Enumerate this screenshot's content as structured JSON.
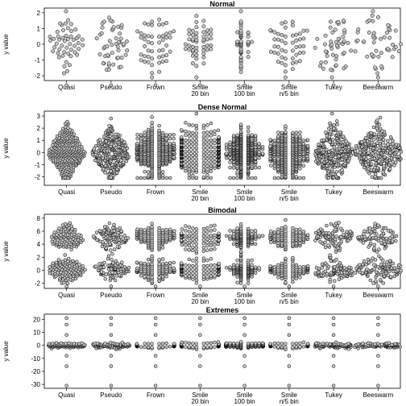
{
  "chart_data": [
    {
      "type": "scatter",
      "title": "Normal",
      "ylabel": "y value",
      "ylim": [
        -2.3,
        2.3
      ],
      "yticks": [
        -2,
        -1,
        0,
        1,
        2
      ],
      "categories": [
        "Quasi",
        "Pseudo",
        "Frown",
        "Smile\n20 bin",
        "Smile\n100 bin",
        "Smile\nn/5 bin",
        "Tukey",
        "Beeswarm"
      ],
      "n_points_per_method": 50,
      "distribution": "normal(0,1)",
      "outliers": [
        -2.6
      ]
    },
    {
      "type": "scatter",
      "title": "Dense Normal",
      "ylabel": "y value",
      "ylim": [
        -2.7,
        3.4
      ],
      "yticks": [
        -2,
        -1,
        0,
        1,
        2,
        3
      ],
      "categories": [
        "Quasi",
        "Pseudo",
        "Frown",
        "Smile\n20 bin",
        "Smile\n100 bin",
        "Smile\nn/5 bin",
        "Tukey",
        "Beeswarm"
      ],
      "n_points_per_method": 300,
      "distribution": "normal(0,1)",
      "outliers": []
    },
    {
      "type": "scatter",
      "title": "Bimodal",
      "ylabel": "y value",
      "ylim": [
        -2.8,
        8.6
      ],
      "yticks": [
        -2,
        0,
        2,
        4,
        6,
        8
      ],
      "categories": [
        "Quasi",
        "Pseudo",
        "Frown",
        "Smile\n20 bin",
        "Smile\n100 bin",
        "Smile\nn/5 bin",
        "Tukey",
        "Beeswarm"
      ],
      "n_points_per_method": 200,
      "distribution": "mixture normal(0,1) + normal(5,1)",
      "outliers": [
        -2.5
      ]
    },
    {
      "type": "scatter",
      "title": "Extremes",
      "ylabel": "y value",
      "ylim": [
        -33,
        24
      ],
      "yticks": [
        -30,
        -20,
        -10,
        0,
        10,
        20
      ],
      "categories": [
        "Quasi",
        "Pseudo",
        "Frown",
        "Smile\n20 bin",
        "Smile\n100 bin",
        "Smile\nn/5 bin",
        "Tukey",
        "Beeswarm"
      ],
      "n_points_per_method": 100,
      "distribution": "mostly near 0 with extremes",
      "outliers": [
        -31,
        -16,
        -8,
        8,
        16,
        21
      ]
    }
  ],
  "colors": {
    "point_fill": "#c4c4c4",
    "point_stroke": "#000000",
    "frame": "#000000"
  }
}
